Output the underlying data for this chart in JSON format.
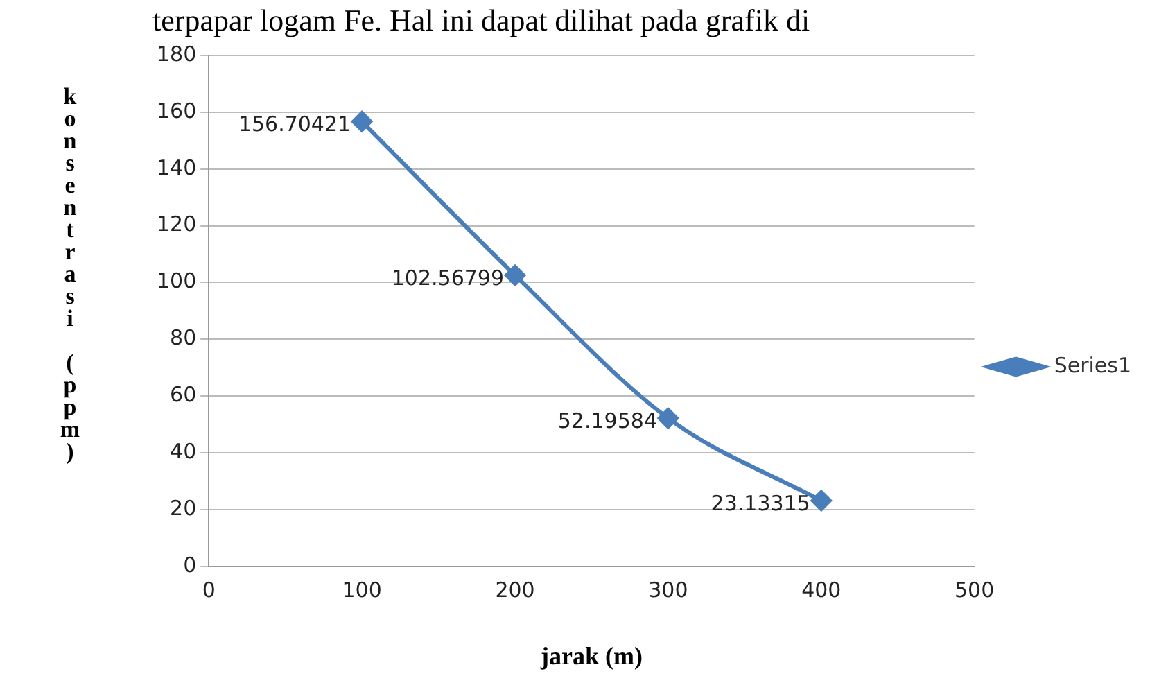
{
  "chart_data": {
    "type": "line",
    "xlabel": "jarak (m)",
    "ylabel": "konsentrasi (ppm)",
    "annotations": [
      "terpapar logam Fe. Hal ini dapat dilihat pada grafik di"
    ],
    "x": [
      100,
      200,
      300,
      400
    ],
    "series": [
      {
        "name": "Series1",
        "color": "#4a7ebb",
        "values": [
          156.70421,
          102.56799,
          52.19584,
          23.13315
        ]
      }
    ],
    "xlim": [
      0,
      500
    ],
    "xticks": [
      0,
      100,
      200,
      300,
      400,
      500
    ],
    "ylim": [
      0,
      180
    ],
    "yticks": [
      0,
      20,
      40,
      60,
      80,
      100,
      120,
      140,
      160,
      180
    ],
    "grid": "y",
    "legend": "right",
    "marker": "diamond",
    "data_labels": true
  }
}
